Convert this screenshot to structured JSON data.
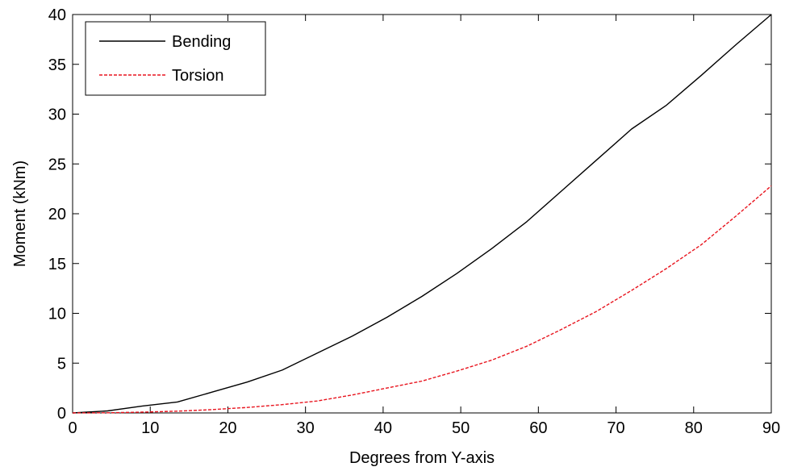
{
  "chart_data": {
    "type": "line",
    "title": "",
    "xlabel": "Degrees from Y-axis",
    "ylabel": "Moment (kNm)",
    "xlim": [
      0,
      90
    ],
    "ylim": [
      0,
      40
    ],
    "xticks": [
      0,
      10,
      20,
      30,
      40,
      50,
      60,
      70,
      80,
      90
    ],
    "yticks": [
      0,
      5,
      10,
      15,
      20,
      25,
      30,
      35,
      40
    ],
    "grid": false,
    "legend_position": "top-left",
    "series": [
      {
        "name": "Bending",
        "color": "#000000",
        "style": "solid",
        "x": [
          0,
          4.5,
          9,
          13.5,
          18,
          22.5,
          27,
          31.5,
          36,
          40.5,
          45,
          49.5,
          54,
          58.5,
          63,
          67.5,
          72,
          76.5,
          81,
          85.5,
          90
        ],
        "y": [
          0,
          0.2,
          0.7,
          1.1,
          2.1,
          3.1,
          4.3,
          6.0,
          7.7,
          9.6,
          11.7,
          14.0,
          16.5,
          19.2,
          22.3,
          25.4,
          28.5,
          30.9,
          33.9,
          37.0,
          40.0
        ]
      },
      {
        "name": "Torsion",
        "color": "#e8141e",
        "style": "dashed",
        "x": [
          0,
          4.5,
          9,
          13.5,
          18,
          22.5,
          27,
          31.5,
          36,
          40.5,
          45,
          49.5,
          54,
          58.5,
          63,
          67.5,
          72,
          76.5,
          81,
          85.5,
          90
        ],
        "y": [
          0,
          0.02,
          0.08,
          0.18,
          0.33,
          0.55,
          0.83,
          1.2,
          1.8,
          2.5,
          3.2,
          4.2,
          5.3,
          6.7,
          8.4,
          10.2,
          12.3,
          14.5,
          16.9,
          19.8,
          22.8
        ]
      }
    ]
  }
}
